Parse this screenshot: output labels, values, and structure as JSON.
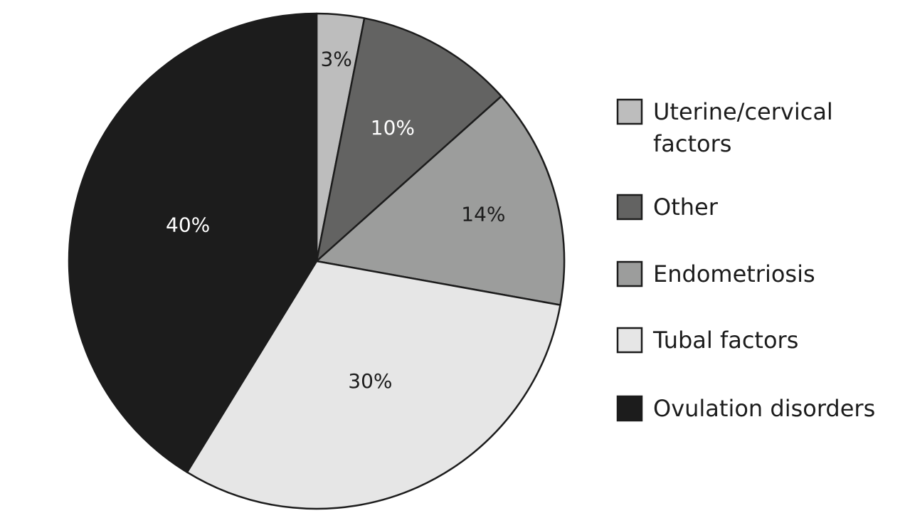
{
  "chart_data": {
    "type": "pie",
    "title": "",
    "start_angle_deg": 0,
    "direction": "clockwise",
    "slices": [
      {
        "label": "Uterine/cervical factors",
        "legend_lines": [
          "Uterine/cervical",
          "factors"
        ],
        "value": 3,
        "value_label": "3%",
        "color": "#bdbdbd",
        "text_color": "#1c1c1c"
      },
      {
        "label": "Other",
        "legend_lines": [
          "Other"
        ],
        "value": 10,
        "value_label": "10%",
        "color": "#636362",
        "text_color": "#ffffff"
      },
      {
        "label": "Endometriosis",
        "legend_lines": [
          "Endometriosis"
        ],
        "value": 14,
        "value_label": "14%",
        "color": "#9c9d9c",
        "text_color": "#1c1c1c"
      },
      {
        "label": "Tubal factors",
        "legend_lines": [
          "Tubal factors"
        ],
        "value": 30,
        "value_label": "30%",
        "color": "#e6e6e6",
        "text_color": "#1c1c1c"
      },
      {
        "label": "Ovulation disorders",
        "legend_lines": [
          "Ovulation disorders"
        ],
        "value": 40,
        "value_label": "40%",
        "color": "#1c1c1c",
        "text_color": "#ffffff"
      }
    ],
    "legend_position": "right",
    "stroke_color": "#1c1c1c"
  }
}
